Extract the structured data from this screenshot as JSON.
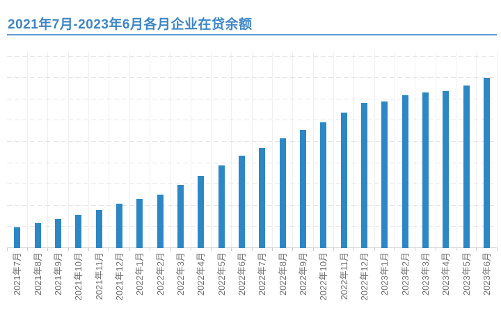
{
  "header": {
    "title": "2021年7月-2023年6月各月企业在贷余额"
  },
  "colors": {
    "title": "#3d86c5",
    "underline": "#5b9bd5",
    "bar": "#2d87c4",
    "gridline_h": "#e4e4e4",
    "gridline_v": "#efefef",
    "axis": "#cccccc",
    "tick": "#cccccc",
    "tick_label": "#6e6e6e",
    "background": "#ffffff"
  },
  "chart_data": {
    "type": "bar",
    "title": "2021年7月-2023年6月各月企业在贷余额",
    "categories": [
      "2021年7月",
      "2021年8月",
      "2021年9月",
      "2021年10月",
      "2021年11月",
      "2021年12月",
      "2022年1月",
      "2022年2月",
      "2022年3月",
      "2022年4月",
      "2022年5月",
      "2022年6月",
      "2022年7月",
      "2022年8月",
      "2022年9月",
      "2022年10月",
      "2022年11月",
      "2022年12月",
      "2023年1月",
      "2023年2月",
      "2023年3月",
      "2023年4月",
      "2023年5月",
      "2023年6月"
    ],
    "values": [
      0.98,
      1.18,
      1.37,
      1.57,
      1.8,
      2.09,
      2.32,
      2.52,
      2.97,
      3.4,
      3.89,
      4.35,
      4.71,
      5.18,
      5.56,
      5.9,
      6.37,
      6.83,
      6.91,
      7.19,
      7.32,
      7.39,
      7.65,
      8.01
    ],
    "xlabel": "",
    "ylabel": "",
    "ylim": [
      0,
      9
    ],
    "y_axis_tick_labels_visible": false,
    "x_label_rotation_deg": 90,
    "grid": {
      "horizontal": "dashed",
      "vertical": "solid-faint"
    },
    "legend": "none",
    "note": "y-axis shows no numeric labels; values estimated in gridline units (1 unit = one dashed gridline interval, baseline = 0, tallest bar reaches 8th gridline)"
  }
}
